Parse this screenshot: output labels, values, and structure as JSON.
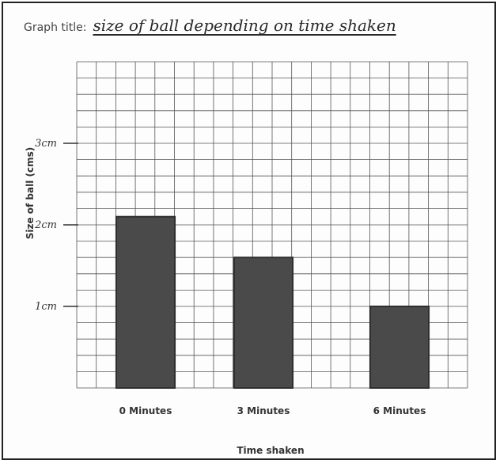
{
  "chart_data": {
    "type": "bar",
    "title_prefix": "Graph title:",
    "title": "size of ball depending on time shaken",
    "xlabel": "Time shaken",
    "ylabel": "Size of ball (cms)",
    "categories": [
      "0 Minutes",
      "3 Minutes",
      "6 Minutes"
    ],
    "values": [
      2.1,
      1.6,
      1.0
    ],
    "ylim": [
      0,
      3.1
    ],
    "yticks": [
      {
        "value": 1,
        "label": "1cm"
      },
      {
        "value": 2,
        "label": "2cm"
      },
      {
        "value": 3,
        "label": "3cm"
      }
    ],
    "grid": true,
    "bar_color": "#4a4a4a"
  }
}
